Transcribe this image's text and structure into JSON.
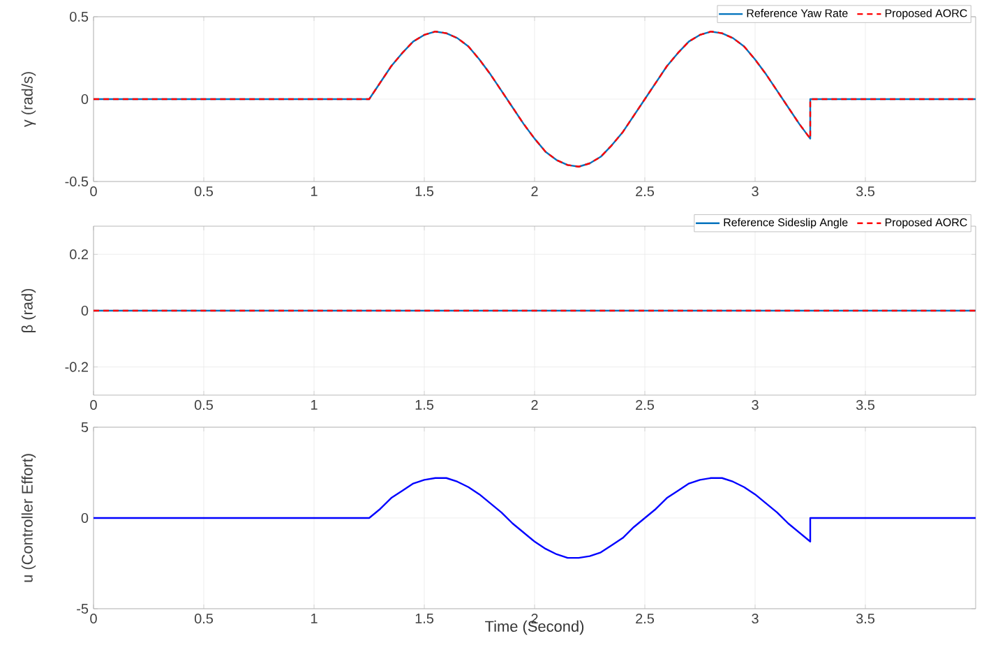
{
  "chart_data": [
    {
      "type": "line",
      "ylabel": "γ  (rad/s)",
      "xlim": [
        0,
        4
      ],
      "ylim": [
        -0.5,
        0.5
      ],
      "xticks": [
        0,
        0.5,
        1,
        1.5,
        2,
        2.5,
        3,
        3.5
      ],
      "yticks": [
        -0.5,
        0,
        0.5
      ],
      "grid": true,
      "legend": "top right",
      "series": [
        {
          "name": "Reference Yaw Rate",
          "color": "#0072bd",
          "line_style": "solid",
          "x": [
            0,
            1.25,
            1.3,
            1.35,
            1.4,
            1.45,
            1.5,
            1.55,
            1.6,
            1.65,
            1.7,
            1.75,
            1.8,
            1.85,
            1.9,
            1.95,
            2.0,
            2.05,
            2.1,
            2.15,
            2.2,
            2.25,
            2.3,
            2.35,
            2.4,
            2.45,
            2.5,
            2.55,
            2.6,
            2.65,
            2.7,
            2.75,
            2.8,
            2.85,
            2.9,
            2.95,
            3.0,
            3.05,
            3.1,
            3.15,
            3.2,
            3.25,
            3.25,
            4
          ],
          "values": [
            0,
            0,
            0.1,
            0.2,
            0.28,
            0.35,
            0.39,
            0.41,
            0.4,
            0.37,
            0.32,
            0.24,
            0.15,
            0.05,
            -0.05,
            -0.15,
            -0.24,
            -0.32,
            -0.37,
            -0.4,
            -0.41,
            -0.39,
            -0.35,
            -0.28,
            -0.2,
            -0.1,
            0,
            0.1,
            0.2,
            0.28,
            0.35,
            0.39,
            0.41,
            0.4,
            0.37,
            0.32,
            0.24,
            0.15,
            0.05,
            -0.05,
            -0.15,
            -0.24,
            0,
            0
          ]
        },
        {
          "name": "Proposed AORC",
          "color": "#ff0000",
          "line_style": "dashed",
          "x": [
            0,
            1.25,
            1.3,
            1.35,
            1.4,
            1.45,
            1.5,
            1.55,
            1.6,
            1.65,
            1.7,
            1.75,
            1.8,
            1.85,
            1.9,
            1.95,
            2.0,
            2.05,
            2.1,
            2.15,
            2.2,
            2.25,
            2.3,
            2.35,
            2.4,
            2.45,
            2.5,
            2.55,
            2.6,
            2.65,
            2.7,
            2.75,
            2.8,
            2.85,
            2.9,
            2.95,
            3.0,
            3.05,
            3.1,
            3.15,
            3.2,
            3.25,
            3.25,
            4
          ],
          "values": [
            0,
            0,
            0.1,
            0.2,
            0.28,
            0.35,
            0.39,
            0.41,
            0.4,
            0.37,
            0.32,
            0.24,
            0.15,
            0.05,
            -0.05,
            -0.15,
            -0.24,
            -0.32,
            -0.37,
            -0.4,
            -0.41,
            -0.39,
            -0.35,
            -0.28,
            -0.2,
            -0.1,
            0,
            0.1,
            0.2,
            0.28,
            0.35,
            0.39,
            0.41,
            0.4,
            0.37,
            0.32,
            0.24,
            0.15,
            0.05,
            -0.05,
            -0.15,
            -0.24,
            0,
            0
          ]
        }
      ]
    },
    {
      "type": "line",
      "ylabel": "β (rad)",
      "xlim": [
        0,
        4
      ],
      "ylim": [
        -0.3,
        0.3
      ],
      "xticks": [
        0,
        0.5,
        1,
        1.5,
        2,
        2.5,
        3,
        3.5
      ],
      "yticks": [
        -0.2,
        0,
        0.2
      ],
      "grid": true,
      "legend": "top right",
      "series": [
        {
          "name": "Reference Sideslip Angle",
          "color": "#0072bd",
          "line_style": "solid",
          "x": [
            0,
            4
          ],
          "values": [
            0,
            0
          ]
        },
        {
          "name": "Proposed AORC",
          "color": "#ff0000",
          "line_style": "dashed",
          "x": [
            0,
            4
          ],
          "values": [
            0,
            0
          ]
        }
      ]
    },
    {
      "type": "line",
      "ylabel": "u  (Controller Effort)",
      "xlabel": "Time (Second)",
      "xlim": [
        0,
        4
      ],
      "ylim": [
        -5,
        5
      ],
      "xticks": [
        0,
        0.5,
        1,
        1.5,
        2,
        2.5,
        3,
        3.5
      ],
      "yticks": [
        -5,
        0,
        5
      ],
      "grid": true,
      "series": [
        {
          "color": "#0000ff",
          "line_style": "solid",
          "x": [
            0,
            1.25,
            1.3,
            1.35,
            1.4,
            1.45,
            1.5,
            1.55,
            1.6,
            1.65,
            1.7,
            1.75,
            1.8,
            1.85,
            1.9,
            1.95,
            2.0,
            2.05,
            2.1,
            2.15,
            2.2,
            2.25,
            2.3,
            2.35,
            2.4,
            2.45,
            2.5,
            2.55,
            2.6,
            2.65,
            2.7,
            2.75,
            2.8,
            2.85,
            2.9,
            2.95,
            3.0,
            3.05,
            3.1,
            3.15,
            3.2,
            3.25,
            3.25,
            4
          ],
          "values": [
            0,
            0,
            0.5,
            1.1,
            1.5,
            1.9,
            2.1,
            2.2,
            2.2,
            2.0,
            1.7,
            1.3,
            0.8,
            0.3,
            -0.3,
            -0.8,
            -1.3,
            -1.7,
            -2.0,
            -2.2,
            -2.2,
            -2.1,
            -1.9,
            -1.5,
            -1.1,
            -0.5,
            0,
            0.5,
            1.1,
            1.5,
            1.9,
            2.1,
            2.2,
            2.2,
            2.0,
            1.7,
            1.3,
            0.8,
            0.3,
            -0.3,
            -0.8,
            -1.3,
            0,
            0
          ]
        }
      ]
    }
  ]
}
